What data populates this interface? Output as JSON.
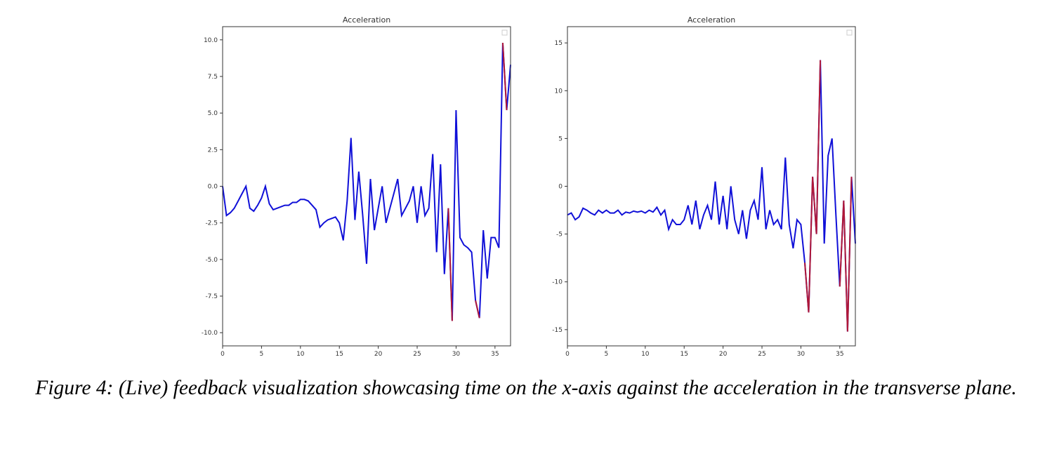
{
  "chart_data": [
    {
      "type": "line",
      "title": "Acceleration",
      "x": [
        0,
        0.5,
        1,
        1.5,
        2,
        2.5,
        3,
        3.5,
        4,
        4.5,
        5,
        5.5,
        6,
        6.5,
        7,
        7.5,
        8,
        8.5,
        9,
        9.5,
        10,
        10.5,
        11,
        11.5,
        12,
        12.5,
        13,
        13.5,
        14,
        14.5,
        15,
        15.5,
        16,
        16.5,
        17,
        17.5,
        18,
        18.5,
        19,
        19.5,
        20,
        20.5,
        21,
        21.5,
        22,
        22.5,
        23,
        23.5,
        24,
        24.5,
        25,
        25.5,
        26,
        26.5,
        27,
        27.5,
        28,
        28.5,
        29,
        29.5,
        30,
        30.5,
        31,
        31.5,
        32,
        32.5,
        33,
        33.5,
        34,
        34.5,
        35,
        35.5,
        36,
        36.5,
        37
      ],
      "series": [
        {
          "color": "#1010d8",
          "values": [
            0,
            -2,
            -1.8,
            -1.5,
            -1,
            -0.5,
            0,
            -1.5,
            -1.7,
            -1.3,
            -0.8,
            0,
            -1.2,
            -1.6,
            -1.5,
            -1.4,
            -1.3,
            -1.3,
            -1.1,
            -1.1,
            -0.9,
            -0.9,
            -1,
            -1.3,
            -1.6,
            -2.8,
            -2.5,
            -2.3,
            -2.2,
            -2.1,
            -2.5,
            -3.7,
            -1,
            3.3,
            -2.3,
            1,
            -2,
            -5.3,
            0.5,
            -3,
            -1.5,
            0,
            -2.5,
            -1.5,
            -0.5,
            0.5,
            -2,
            -1.5,
            -1,
            0,
            -2.5,
            0,
            -2,
            -1.5,
            2.2,
            -4.5,
            1.5,
            -6,
            -1.5,
            -9.2,
            5.2,
            -3.5,
            -4,
            -4.2,
            -4.5,
            -7.8,
            -9,
            -3,
            -6.3,
            -3.5,
            -3.5,
            -4.2,
            9.8,
            5.2,
            8.3
          ]
        },
        {
          "color": "#b01838",
          "values": [
            null,
            null,
            null,
            null,
            null,
            null,
            null,
            null,
            null,
            null,
            null,
            null,
            null,
            null,
            null,
            null,
            null,
            null,
            null,
            null,
            null,
            null,
            null,
            null,
            null,
            null,
            null,
            null,
            null,
            null,
            null,
            null,
            null,
            null,
            null,
            null,
            null,
            null,
            null,
            null,
            null,
            null,
            null,
            null,
            null,
            null,
            null,
            null,
            null,
            null,
            null,
            null,
            null,
            null,
            null,
            null,
            null,
            null,
            -1.5,
            -9.2,
            null,
            null,
            null,
            null,
            null,
            -7.8,
            -9,
            null,
            null,
            null,
            null,
            null,
            9.8,
            5.2,
            null
          ]
        }
      ],
      "xlim": [
        0,
        37
      ],
      "xticks": [
        0,
        5,
        10,
        15,
        20,
        25,
        30,
        35
      ],
      "ylim": [
        -10.9,
        10.9
      ],
      "yticks": [
        {
          "value": -10,
          "label": "-10.0"
        },
        {
          "value": -7.5,
          "label": "-7.5"
        },
        {
          "value": -5,
          "label": "-5.0"
        },
        {
          "value": -2.5,
          "label": "-2.5"
        },
        {
          "value": 0,
          "label": "0.0"
        },
        {
          "value": 2.5,
          "label": "2.5"
        },
        {
          "value": 5,
          "label": "5.0"
        },
        {
          "value": 7.5,
          "label": "7.5"
        },
        {
          "value": 10,
          "label": "10.0"
        }
      ]
    },
    {
      "type": "line",
      "title": "Acceleration",
      "x": [
        0,
        0.5,
        1,
        1.5,
        2,
        2.5,
        3,
        3.5,
        4,
        4.5,
        5,
        5.5,
        6,
        6.5,
        7,
        7.5,
        8,
        8.5,
        9,
        9.5,
        10,
        10.5,
        11,
        11.5,
        12,
        12.5,
        13,
        13.5,
        14,
        14.5,
        15,
        15.5,
        16,
        16.5,
        17,
        17.5,
        18,
        18.5,
        19,
        19.5,
        20,
        20.5,
        21,
        21.5,
        22,
        22.5,
        23,
        23.5,
        24,
        24.5,
        25,
        25.5,
        26,
        26.5,
        27,
        27.5,
        28,
        28.5,
        29,
        29.5,
        30,
        30.5,
        31,
        31.5,
        32,
        32.5,
        33,
        33.5,
        34,
        34.5,
        35,
        35.5,
        36,
        36.5,
        37
      ],
      "series": [
        {
          "color": "#1010d8",
          "values": [
            -3,
            -2.8,
            -3.5,
            -3.2,
            -2.3,
            -2.5,
            -2.8,
            -3,
            -2.5,
            -2.8,
            -2.5,
            -2.8,
            -2.8,
            -2.5,
            -3,
            -2.7,
            -2.8,
            -2.6,
            -2.7,
            -2.6,
            -2.8,
            -2.5,
            -2.7,
            -2.2,
            -3,
            -2.5,
            -4.5,
            -3.5,
            -4,
            -4,
            -3.5,
            -2,
            -4,
            -1.5,
            -4.5,
            -3,
            -2,
            -3.5,
            0.5,
            -4,
            -1,
            -4.5,
            0,
            -3.5,
            -5,
            -2.5,
            -5.5,
            -2.5,
            -1.5,
            -3.5,
            2,
            -4.5,
            -2.5,
            -4,
            -3.5,
            -4.5,
            3,
            -4,
            -6.5,
            -3.5,
            -4,
            -8,
            -13.2,
            1,
            -5,
            13.2,
            -6,
            3.2,
            5,
            -3,
            -10.5,
            -1.5,
            -15.2,
            1,
            -6
          ]
        },
        {
          "color": "#b01838",
          "values": [
            null,
            null,
            null,
            null,
            null,
            null,
            null,
            null,
            null,
            null,
            null,
            null,
            null,
            null,
            null,
            null,
            null,
            null,
            null,
            null,
            null,
            null,
            null,
            null,
            null,
            null,
            null,
            null,
            null,
            null,
            null,
            null,
            null,
            null,
            null,
            null,
            null,
            null,
            null,
            null,
            null,
            null,
            null,
            null,
            null,
            null,
            null,
            null,
            null,
            null,
            null,
            null,
            null,
            null,
            null,
            null,
            null,
            null,
            null,
            null,
            null,
            -8,
            -13.2,
            1,
            -5,
            13.2,
            null,
            null,
            null,
            null,
            -10.5,
            -1.5,
            -15.2,
            1,
            null
          ]
        }
      ],
      "xlim": [
        0,
        37
      ],
      "xticks": [
        0,
        5,
        10,
        15,
        20,
        25,
        30,
        35
      ],
      "ylim": [
        -16.7,
        16.7
      ],
      "yticks": [
        -15,
        -10,
        -5,
        0,
        5,
        10,
        15
      ]
    }
  ],
  "caption": "Figure 4: (Live) feedback visualization showcasing time on the x-axis against the acceleration in the transverse plane."
}
